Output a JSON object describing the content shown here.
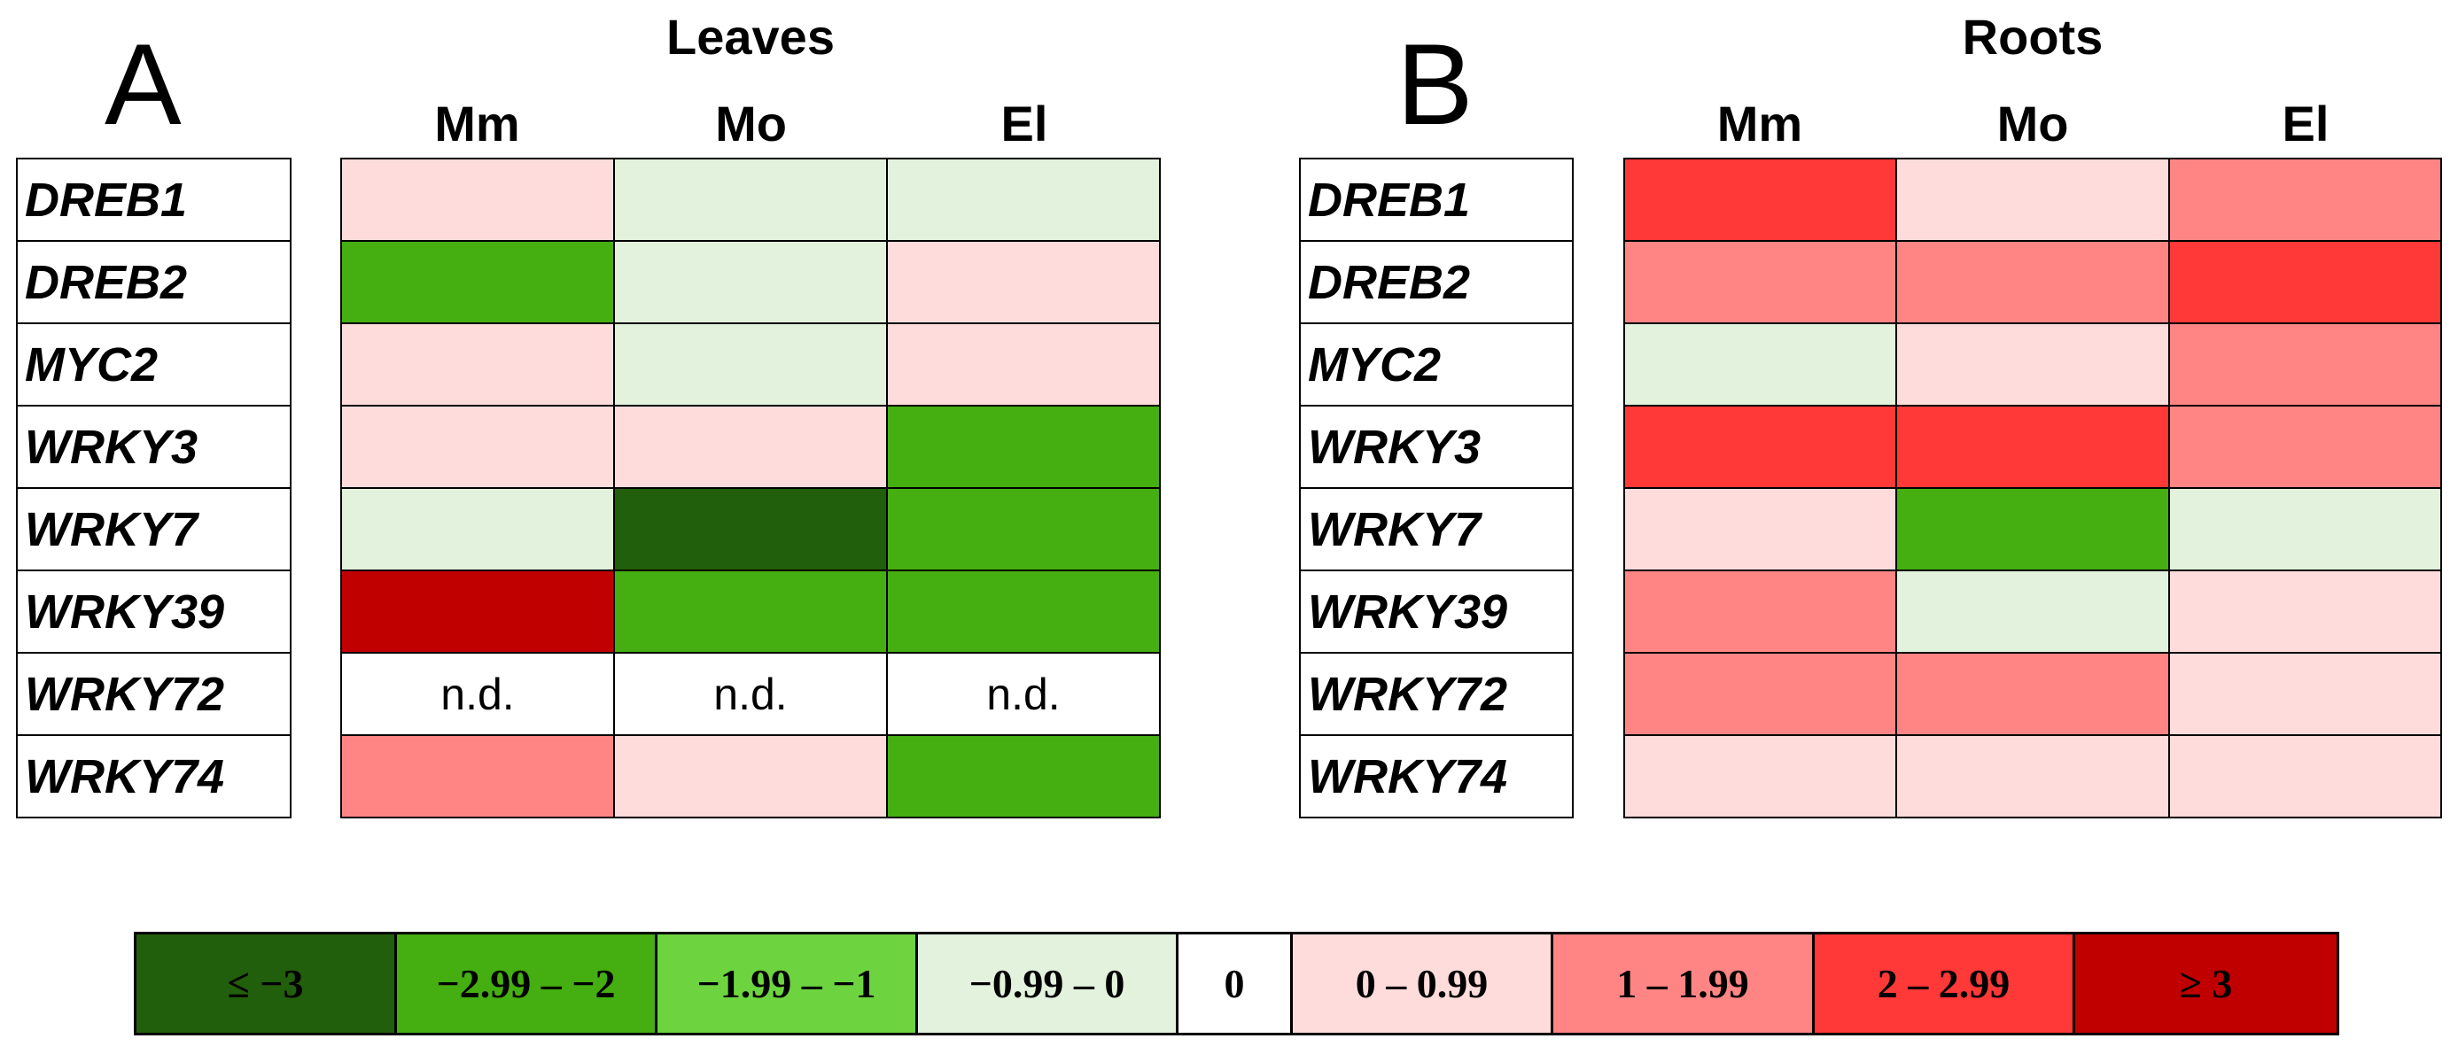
{
  "chart_data": {
    "type": "heatmap",
    "genes": [
      "DREB1",
      "DREB2",
      "MYC2",
      "WRKY3",
      "WRKY7",
      "WRKY39",
      "WRKY72",
      "WRKY74"
    ],
    "columns": [
      "Mm",
      "Mo",
      "El"
    ],
    "nd_label": "n.d.",
    "panels": [
      {
        "letter": "A",
        "title": "Leaves",
        "cells": [
          [
            5,
            3,
            3
          ],
          [
            1,
            3,
            5
          ],
          [
            5,
            3,
            5
          ],
          [
            5,
            5,
            1
          ],
          [
            3,
            0,
            1
          ],
          [
            8,
            1,
            1
          ],
          [
            "nd",
            "nd",
            "nd"
          ],
          [
            6,
            5,
            1
          ]
        ]
      },
      {
        "letter": "B",
        "title": "Roots",
        "cells": [
          [
            7,
            5,
            6
          ],
          [
            6,
            6,
            7
          ],
          [
            3,
            5,
            6
          ],
          [
            7,
            7,
            6
          ],
          [
            5,
            1,
            3
          ],
          [
            6,
            3,
            5
          ],
          [
            6,
            6,
            5
          ],
          [
            5,
            5,
            5
          ]
        ]
      }
    ],
    "legend": [
      {
        "label": "≤ −3",
        "color": "#225f0c"
      },
      {
        "label": "−2.99 – −2",
        "color": "#45ae11"
      },
      {
        "label": "−1.99 – −1",
        "color": "#6dd440"
      },
      {
        "label": "−0.99 – 0",
        "color": "#e2f2dc"
      },
      {
        "label": "0",
        "color": "#ffffff"
      },
      {
        "label": "0 – 0.99",
        "color": "#ffdcdc"
      },
      {
        "label": "1 – 1.99",
        "color": "#ff8585"
      },
      {
        "label": "2 – 2.99",
        "color": "#ff3838"
      },
      {
        "label": "≥ 3",
        "color": "#c00000"
      }
    ]
  }
}
